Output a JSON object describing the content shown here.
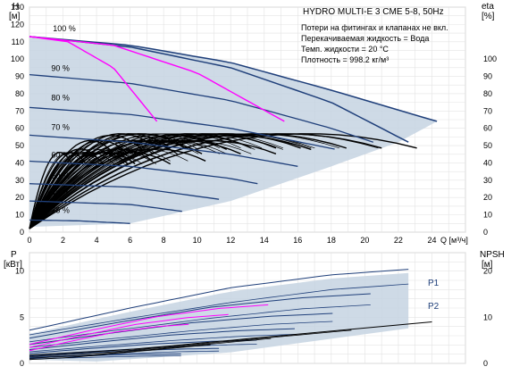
{
  "chart_data": [
    {
      "type": "line",
      "title": "HYDRO MULTI-E 3 CME 5-8, 50Hz",
      "notes": [
        "Потери на фитингах и клапанах не вкл.",
        "Перекачиваемая жидкость = Вода",
        "Темп. жидкости = 20 °C",
        "Плотность = 998.2 кг/м³"
      ],
      "xlabel": "Q [м³/ч]",
      "ylabel_left_1": "H",
      "ylabel_left_2": "[м]",
      "ylabel_right_1": "eta",
      "ylabel_right_2": "[%]",
      "xlim": [
        0,
        26
      ],
      "ylim": [
        0,
        130
      ],
      "y2lim": [
        0,
        130
      ],
      "xticks": [
        "0",
        "2",
        "4",
        "6",
        "8",
        "10",
        "12",
        "14",
        "16",
        "18",
        "20",
        "22",
        "24"
      ],
      "yticks": [
        "0",
        "10",
        "20",
        "30",
        "40",
        "50",
        "60",
        "70",
        "80",
        "90",
        "100",
        "110",
        "120",
        "130"
      ],
      "y2ticks": [
        "0",
        "10",
        "20",
        "30",
        "40",
        "50",
        "60",
        "70",
        "80",
        "90",
        "100"
      ],
      "grid": true,
      "speed_labels": [
        "100 %",
        "90 %",
        "80 %",
        "70 %",
        "60 %",
        "50 %",
        "40 %",
        "25 %"
      ],
      "speed_fractions": [
        1.0,
        0.9,
        0.8,
        0.7,
        0.6,
        0.5,
        0.4,
        0.25
      ],
      "pumps_max_flow_at_100": [
        6,
        8,
        10,
        12,
        14,
        16,
        18,
        20,
        22
      ],
      "head_curves_100": [
        {
          "x": [
            0,
            6,
            12,
            18,
            22.6
          ],
          "y": [
            113,
            107,
            95,
            75,
            52
          ]
        },
        {
          "x": [
            0,
            6,
            12,
            18,
            24.3
          ],
          "y": [
            113,
            108,
            98,
            82,
            64
          ]
        }
      ],
      "head_curves_other": [
        {
          "speed": "90 %",
          "x": [
            0,
            6,
            12,
            18,
            20.5
          ],
          "y": [
            91,
            86,
            76,
            60,
            52
          ]
        },
        {
          "speed": "80 %",
          "x": [
            0,
            6,
            12,
            18.2
          ],
          "y": [
            72,
            68,
            60,
            48
          ]
        },
        {
          "speed": "70 %",
          "x": [
            0,
            6,
            12,
            16.0
          ],
          "y": [
            56,
            52,
            45,
            38
          ]
        },
        {
          "speed": "60 %",
          "x": [
            0,
            6,
            12,
            13.6
          ],
          "y": [
            41,
            38,
            31,
            28
          ]
        },
        {
          "speed": "50 %",
          "x": [
            0,
            6,
            11.3
          ],
          "y": [
            28,
            26,
            19
          ]
        },
        {
          "speed": "40 %",
          "x": [
            0,
            6,
            9.1
          ],
          "y": [
            18,
            16,
            12
          ]
        },
        {
          "speed": "25 %",
          "x": [
            0,
            3,
            6.0
          ],
          "y": [
            7,
            6.5,
            5
          ]
        }
      ],
      "npsh_curves": [
        {
          "x": [
            0,
            2.3,
            5,
            7.6
          ],
          "y": [
            113,
            110,
            95,
            64
          ]
        },
        {
          "x": [
            0,
            5,
            10,
            15.2
          ],
          "y": [
            113,
            108,
            92,
            64
          ]
        }
      ],
      "efficiency_peak_percent": [
        45,
        47,
        52,
        55,
        56,
        56
      ],
      "colors": {
        "head": "#1f3f7a",
        "npsh": "#ff00ff",
        "envelope": "#c5d3e2",
        "efficiency": "#000000"
      }
    },
    {
      "type": "line",
      "ylabel_left_1": "P",
      "ylabel_left_2": "[кВт]",
      "ylabel_right": "NPSH",
      "ylabel_right_2": "[м]",
      "xlim": [
        0,
        26
      ],
      "ylim": [
        0,
        12
      ],
      "y2lim": [
        0,
        24
      ],
      "yticks": [
        "0",
        "5",
        "10"
      ],
      "y2ticks": [
        "0",
        "10",
        "20"
      ],
      "series_labels": [
        "P1",
        "P2"
      ],
      "p1_envelope": {
        "x": [
          0,
          6,
          12,
          18,
          22.6
        ],
        "y": [
          3.2,
          5.6,
          7.8,
          9.2,
          9.8
        ]
      },
      "p2_envelope": {
        "x": [
          0,
          6,
          12,
          18,
          22.6
        ],
        "y": [
          2.8,
          4.6,
          6.3,
          7.7,
          8.3
        ]
      },
      "npsh_envelope": {
        "x": [
          0,
          6,
          12,
          18,
          24
        ],
        "y": [
          1.8,
          3,
          5,
          7,
          9
        ]
      },
      "colors": {
        "power": "#1f3f7a",
        "npsh": "#ff00ff",
        "envelope": "#c5d3e2"
      }
    }
  ]
}
